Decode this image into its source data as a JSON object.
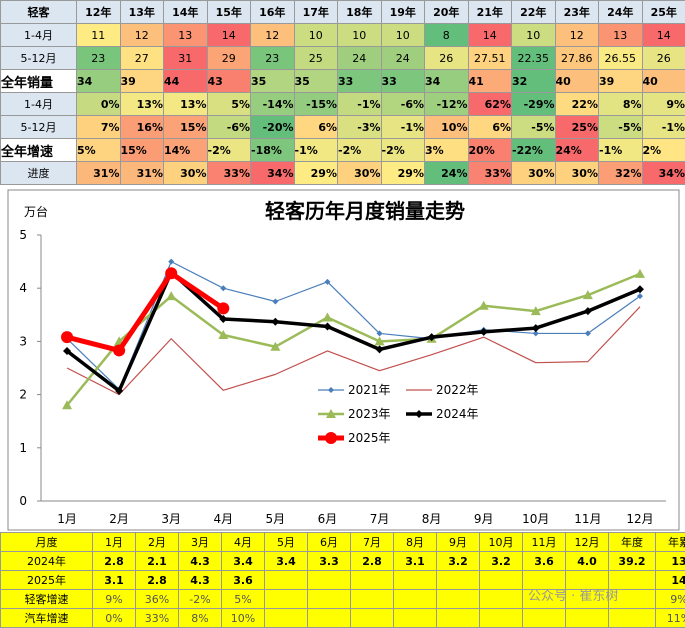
{
  "table_top": {
    "header": [
      "轻客",
      "12年",
      "13年",
      "14年",
      "15年",
      "16年",
      "17年",
      "18年",
      "19年",
      "20年",
      "21年",
      "22年",
      "23年",
      "24年",
      "25年"
    ],
    "rows": [
      {
        "label": "1-4月",
        "values": [
          11,
          12,
          13,
          14,
          12,
          10,
          10,
          10,
          8,
          14,
          10,
          12,
          13,
          14
        ]
      },
      {
        "label": "5-12月",
        "values": [
          23,
          27,
          31,
          29,
          23,
          25,
          24,
          24,
          26,
          27.51,
          22.35,
          27.86,
          26.55,
          26
        ]
      },
      {
        "label": "全年销量",
        "values": [
          34,
          39,
          44,
          43,
          35,
          35,
          33,
          33,
          34,
          41,
          32,
          40,
          39,
          40
        ]
      },
      {
        "label": "1-4月",
        "values": [
          "0%",
          "13%",
          "13%",
          "5%",
          "-14%",
          "-15%",
          "-1%",
          "-6%",
          "-12%",
          "62%",
          "-29%",
          "22%",
          "8%",
          "9%"
        ]
      },
      {
        "label": "5-12月",
        "values": [
          "7%",
          "16%",
          "15%",
          "-6%",
          "-20%",
          "6%",
          "-3%",
          "-1%",
          "10%",
          "6%",
          "-5%",
          "25%",
          "-5%",
          "-1%"
        ]
      },
      {
        "label": "全年增速",
        "values": [
          "5%",
          "15%",
          "14%",
          "-2%",
          "-18%",
          "-1%",
          "-2%",
          "-2%",
          "3%",
          "20%",
          "-22%",
          "24%",
          "-1%",
          "2%"
        ]
      },
      {
        "label": "进度",
        "values": [
          "31%",
          "31%",
          "30%",
          "33%",
          "34%",
          "29%",
          "30%",
          "29%",
          "24%",
          "33%",
          "30%",
          "30%",
          "32%",
          "34%"
        ]
      }
    ]
  },
  "chart_data": {
    "type": "line",
    "title": "轻客历年月度销量走势",
    "y_label": "万台",
    "categories": [
      "1月",
      "2月",
      "3月",
      "4月",
      "5月",
      "6月",
      "7月",
      "8月",
      "9月",
      "10月",
      "11月",
      "12月"
    ],
    "ylim": [
      0,
      5
    ],
    "yticks": [
      0,
      1,
      2,
      3,
      4,
      5
    ],
    "series": [
      {
        "name": "2021年",
        "color": "#4a7ebb",
        "marker": "diamond",
        "values": [
          3.05,
          2.1,
          4.5,
          4.0,
          3.75,
          4.12,
          3.15,
          3.05,
          3.22,
          3.15,
          3.15,
          3.85
        ]
      },
      {
        "name": "2022年",
        "color": "#c0504d",
        "marker": "none",
        "values": [
          2.5,
          2.0,
          3.05,
          2.08,
          2.38,
          2.82,
          2.45,
          2.75,
          3.08,
          2.6,
          2.62,
          3.65
        ]
      },
      {
        "name": "2023年",
        "color": "#9bbb59",
        "marker": "triangle",
        "values": [
          1.8,
          3.0,
          3.85,
          3.12,
          2.9,
          3.45,
          3.0,
          3.05,
          3.67,
          3.57,
          3.87,
          4.27
        ]
      },
      {
        "name": "2024年",
        "color": "#000000",
        "marker": "diamond",
        "values": [
          2.82,
          2.07,
          4.3,
          3.42,
          3.37,
          3.28,
          2.85,
          3.08,
          3.18,
          3.25,
          3.57,
          3.98
        ]
      },
      {
        "name": "2025年",
        "color": "#ff0000",
        "marker": "circle",
        "values": [
          3.08,
          2.83,
          4.28,
          3.62,
          null,
          null,
          null,
          null,
          null,
          null,
          null,
          null
        ]
      }
    ]
  },
  "table_bottom": {
    "header": [
      "月度",
      "1月",
      "2月",
      "3月",
      "4月",
      "5月",
      "6月",
      "7月",
      "8月",
      "9月",
      "10月",
      "11月",
      "12月",
      "年度",
      "年累"
    ],
    "rows": [
      {
        "label": "2024年",
        "values": [
          "2.8",
          "2.1",
          "4.3",
          "3.4",
          "3.4",
          "3.3",
          "2.8",
          "3.1",
          "3.2",
          "3.2",
          "3.6",
          "4.0",
          "39.2",
          "13"
        ]
      },
      {
        "label": "2025年",
        "values": [
          "3.1",
          "2.8",
          "4.3",
          "3.6",
          null,
          null,
          null,
          null,
          null,
          null,
          null,
          null,
          null,
          "14"
        ]
      },
      {
        "label": "轻客增速",
        "values": [
          "9%",
          "36%",
          "-2%",
          "5%",
          null,
          null,
          null,
          null,
          null,
          null,
          null,
          null,
          null,
          "9%"
        ]
      },
      {
        "label": "汽车增速",
        "values": [
          "0%",
          "33%",
          "8%",
          "10%",
          null,
          null,
          null,
          null,
          null,
          null,
          null,
          null,
          null,
          "11%"
        ]
      }
    ]
  },
  "watermark": "公众号 · 崔东树"
}
